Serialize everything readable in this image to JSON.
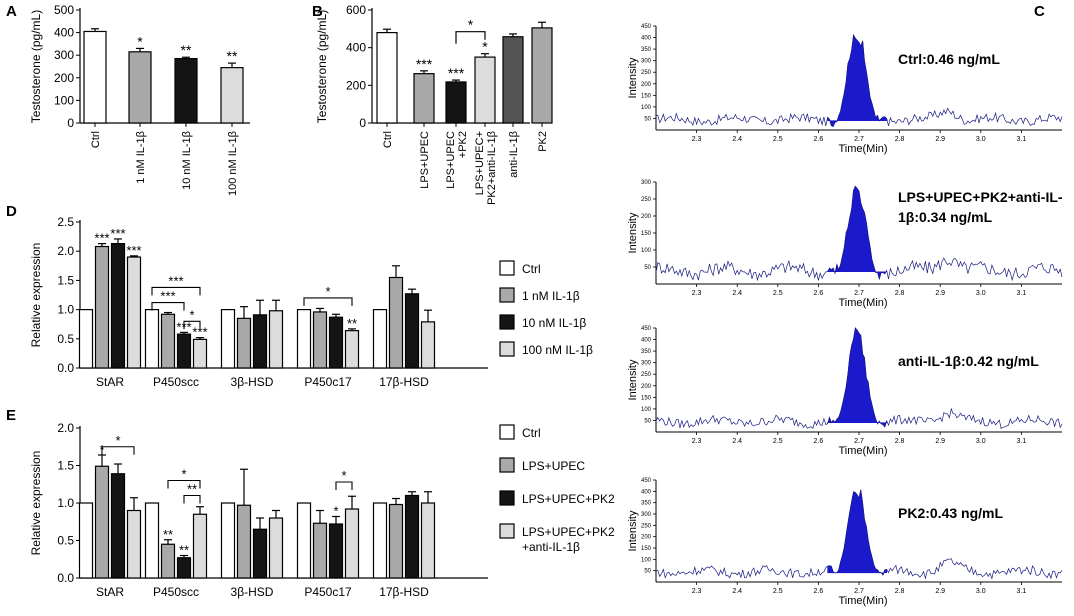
{
  "figure": {
    "colors": {
      "ctrl": "#ffffff",
      "gray1": "#a9a9a9",
      "black": "#141414",
      "gray2": "#dcdcdc",
      "dark": "#555555",
      "peak": "#1a1acc",
      "trace": "#1a1a80"
    }
  },
  "chart_data": [
    {
      "id": "A",
      "panel_label": "A",
      "type": "bar",
      "ylabel": "Testosterone (pg/mL)",
      "ylim": [
        0,
        500
      ],
      "yticks": [
        0,
        100,
        200,
        300,
        400,
        500
      ],
      "categories": [
        "Ctrl",
        "1 nM IL-1β",
        "10 nM IL-1β",
        "100 nM IL-1β"
      ],
      "values": [
        405,
        315,
        285,
        245
      ],
      "errors": [
        12,
        15,
        6,
        20
      ],
      "colors": [
        "#ffffff",
        "#a9a9a9",
        "#141414",
        "#dcdcdc"
      ],
      "stars": [
        "",
        "*",
        "**",
        "**"
      ],
      "brackets": []
    },
    {
      "id": "B",
      "panel_label": "B",
      "type": "bar",
      "ylabel": "Testosterone (pg/mL)",
      "ylim": [
        0,
        600
      ],
      "yticks": [
        0,
        200,
        400,
        600
      ],
      "categories": [
        "Ctrl",
        "LPS+UPEC",
        "LPS+UPEC\n+PK2",
        "LPS+UPEC+\nPK2+anti-IL-1β",
        "anti-IL-1β",
        "PK2"
      ],
      "values": [
        480,
        262,
        218,
        350,
        458,
        505
      ],
      "errors": [
        18,
        15,
        10,
        18,
        15,
        30
      ],
      "colors": [
        "#ffffff",
        "#a9a9a9",
        "#141414",
        "#dcdcdc",
        "#555555",
        "#a9a9a9"
      ],
      "stars": [
        "",
        "***",
        "***",
        "*",
        "",
        ""
      ],
      "brackets": [
        {
          "from": 2,
          "to": 3,
          "label": "*"
        }
      ]
    },
    {
      "id": "D",
      "panel_label": "D",
      "type": "bar",
      "ylabel": "Relative expression",
      "ylim": [
        0,
        2.5
      ],
      "yticks": [
        0.0,
        0.5,
        1.0,
        1.5,
        2.0,
        2.5
      ],
      "categories": [
        "StAR",
        "P450scc",
        "3β-HSD",
        "P450c17",
        "17β-HSD"
      ],
      "series": [
        {
          "name": "Ctrl",
          "values": [
            1.0,
            1.0,
            1.0,
            1.0,
            1.0
          ],
          "errors": [
            0,
            0,
            0,
            0,
            0
          ],
          "stars": [
            "",
            "",
            "",
            "",
            ""
          ]
        },
        {
          "name": "1 nM IL-1β",
          "values": [
            2.08,
            0.92,
            0.85,
            0.96,
            1.55
          ],
          "errors": [
            0.05,
            0.03,
            0.2,
            0.06,
            0.2
          ],
          "stars": [
            "***",
            "",
            "",
            "",
            ""
          ]
        },
        {
          "name": "10 nM IL-1β",
          "values": [
            2.13,
            0.58,
            0.91,
            0.87,
            1.27
          ],
          "errors": [
            0.08,
            0.03,
            0.25,
            0.05,
            0.08
          ],
          "stars": [
            "***",
            "***",
            "",
            "",
            ""
          ]
        },
        {
          "name": "100 nM IL-1β",
          "values": [
            1.9,
            0.49,
            0.98,
            0.64,
            0.79
          ],
          "errors": [
            0.02,
            0.03,
            0.18,
            0.03,
            0.2
          ],
          "stars": [
            "***",
            "***",
            "",
            "**",
            ""
          ]
        }
      ],
      "colors": [
        "#ffffff",
        "#a9a9a9",
        "#141414",
        "#dcdcdc"
      ],
      "legend": [
        "Ctrl",
        "1 nM IL-1β",
        "10 nM IL-1β",
        "100 nM IL-1β"
      ],
      "brackets": [
        {
          "group": 1,
          "from": 0,
          "to": 3,
          "value": 1.38,
          "label": "***"
        },
        {
          "group": 1,
          "from": 0,
          "to": 2,
          "value": 1.12,
          "label": "***"
        },
        {
          "group": 1,
          "from": 2,
          "to": 3,
          "value": 0.8,
          "label": "*"
        },
        {
          "group": 3,
          "from": 0,
          "to": 3,
          "value": 1.2,
          "label": "*"
        }
      ]
    },
    {
      "id": "E",
      "panel_label": "E",
      "type": "bar",
      "ylabel": "Relative expression",
      "ylim": [
        0,
        2.0
      ],
      "yticks": [
        0.0,
        0.5,
        1.0,
        1.5,
        2.0
      ],
      "categories": [
        "StAR",
        "P450scc",
        "3β-HSD",
        "P450c17",
        "17β-HSD"
      ],
      "series": [
        {
          "name": "Ctrl",
          "values": [
            1.0,
            1.0,
            1.0,
            1.0,
            1.0
          ],
          "errors": [
            0,
            0,
            0,
            0,
            0
          ],
          "stars": [
            "",
            "",
            "",
            "",
            ""
          ]
        },
        {
          "name": "LPS+UPEC",
          "values": [
            1.49,
            0.45,
            0.97,
            0.73,
            0.98
          ],
          "errors": [
            0.15,
            0.06,
            0.48,
            0.17,
            0.08
          ],
          "stars": [
            "*",
            "**",
            "",
            "",
            ""
          ]
        },
        {
          "name": "LPS+UPEC+PK2",
          "values": [
            1.39,
            0.27,
            0.65,
            0.72,
            1.1
          ],
          "errors": [
            0.13,
            0.03,
            0.15,
            0.1,
            0.05
          ],
          "stars": [
            "",
            "**",
            "",
            "*",
            ""
          ]
        },
        {
          "name": "LPS+UPEC+PK2\n+anti-IL-1β",
          "values": [
            0.9,
            0.85,
            0.8,
            0.92,
            1.0
          ],
          "errors": [
            0.17,
            0.1,
            0.1,
            0.17,
            0.15
          ],
          "stars": [
            "",
            "",
            "",
            "",
            ""
          ]
        }
      ],
      "colors": [
        "#ffffff",
        "#a9a9a9",
        "#141414",
        "#dcdcdc"
      ],
      "legend": [
        "Ctrl",
        "LPS+UPEC",
        "LPS+UPEC+PK2",
        "LPS+UPEC+PK2\n+anti-IL-1β"
      ],
      "brackets": [
        {
          "group": 0,
          "from": 1,
          "to": 3,
          "value": 1.75,
          "label": "*"
        },
        {
          "group": 1,
          "from": 1,
          "to": 3,
          "value": 1.3,
          "label": "*"
        },
        {
          "group": 1,
          "from": 2,
          "to": 3,
          "value": 1.1,
          "label": "**"
        },
        {
          "group": 3,
          "from": 2,
          "to": 3,
          "value": 1.28,
          "label": "*"
        }
      ]
    },
    {
      "id": "C",
      "panel_label": "C",
      "type": "line",
      "xlabel": "Time(Min)",
      "ylabel": "Intensity",
      "xlim": [
        2.2,
        3.2
      ],
      "xticks": [
        2.3,
        2.4,
        2.5,
        2.6,
        2.7,
        2.8,
        2.9,
        3.0,
        3.1
      ],
      "peak_range": [
        2.62,
        2.77
      ],
      "chromatograms": [
        {
          "label": "Ctrl:0.46 ng/mL",
          "ymax": 450,
          "yticks": [
            50,
            100,
            150,
            200,
            250,
            300,
            350,
            400,
            450
          ],
          "peak_height": 470,
          "baseline": 45
        },
        {
          "label": "LPS+UPEC+PK2+anti-IL-\n1β:0.34 ng/mL",
          "ymax": 300,
          "yticks": [
            50,
            100,
            150,
            200,
            250,
            300
          ],
          "peak_height": 315,
          "baseline": 40
        },
        {
          "label": "anti-IL-1β:0.42 ng/mL",
          "ymax": 450,
          "yticks": [
            50,
            100,
            150,
            200,
            250,
            300,
            350,
            400,
            450
          ],
          "peak_height": 460,
          "baseline": 45
        },
        {
          "label": "PK2:0.43 ng/mL",
          "ymax": 450,
          "yticks": [
            50,
            100,
            150,
            200,
            250,
            300,
            350,
            400,
            450
          ],
          "peak_height": 455,
          "baseline": 45
        }
      ]
    }
  ]
}
